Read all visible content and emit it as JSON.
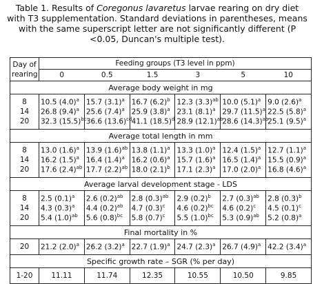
{
  "caption": {
    "before": "Table 1. Results of ",
    "species": "Coregonus lavaretus",
    "after": " larvae rearing on dry diet with T3 supplementation. Standard deviations in parentheses, means with the same superscript letter are not significantly different (P <0.05, Duncan's multiple test)."
  },
  "header": {
    "day_label": "Day of rearing",
    "group_label": "Feeding groups (T3 level in ppm)",
    "levels": [
      "0",
      "0.5",
      "1.5",
      "3",
      "5",
      "10"
    ]
  },
  "sections": [
    {
      "title": "Average body weight in mg",
      "rows": [
        {
          "day": "8",
          "cells": [
            {
              "text": "10.5 (4.0)",
              "sup": "a"
            },
            {
              "text": "15.7 (3.1)",
              "sup": "a"
            },
            {
              "text": "16.7 (6.2)",
              "sup": "b"
            },
            {
              "text": "12.3 (3.3)",
              "sup": "ab"
            },
            {
              "text": "10.0 (5.1)",
              "sup": "a"
            },
            {
              "text": "9.0 (2.6)",
              "sup": "a"
            }
          ]
        },
        {
          "day": "14",
          "cells": [
            {
              "text": "26.8 (9.4)",
              "sup": "a"
            },
            {
              "text": "25.6 (7.4)",
              "sup": "a"
            },
            {
              "text": "25.9 (3.8)",
              "sup": "a"
            },
            {
              "text": "23.1 (8.1)",
              "sup": "a"
            },
            {
              "text": "29.7 (11.5)",
              "sup": "a"
            },
            {
              "text": "22.5 (5.8)",
              "sup": "a"
            }
          ]
        },
        {
          "day": "20",
          "cells": [
            {
              "text": "32.3 (15.5)",
              "sup": "bc"
            },
            {
              "text": "36.6 (13.6)",
              "sup": "cd"
            },
            {
              "text": "41.1 (18.5)",
              "sup": "d"
            },
            {
              "text": "28.9 (12.1)",
              "sup": "ab"
            },
            {
              "text": "28.6 (14.3)",
              "sup": "ab"
            },
            {
              "text": "25.1 (9.5)",
              "sup": "a"
            }
          ]
        }
      ]
    },
    {
      "title": "Average total length in mm",
      "rows": [
        {
          "day": "8",
          "cells": [
            {
              "text": "13.0 (1.6)",
              "sup": "a"
            },
            {
              "text": "13.9 (1.6)",
              "sup": "ab"
            },
            {
              "text": "13.8 (1.1)",
              "sup": "a"
            },
            {
              "text": "13.3 (1.0)",
              "sup": "a"
            },
            {
              "text": "12.4 (1.5)",
              "sup": "a"
            },
            {
              "text": "12.7 (1.1)",
              "sup": "a"
            }
          ]
        },
        {
          "day": "14",
          "cells": [
            {
              "text": "16.2 (1.5)",
              "sup": "a"
            },
            {
              "text": "16.4 (1.4)",
              "sup": "a"
            },
            {
              "text": "16.2 (0.6)",
              "sup": "a"
            },
            {
              "text": "15.7 (1.6)",
              "sup": "a"
            },
            {
              "text": "16.5 (1.4)",
              "sup": "a"
            },
            {
              "text": "15.5 (0.9)",
              "sup": "a"
            }
          ]
        },
        {
          "day": "20",
          "cells": [
            {
              "text": "17.6 (2.4)",
              "sup": "ab"
            },
            {
              "text": "17.7 (2.2)",
              "sup": "ab"
            },
            {
              "text": "18.0 (2.1)",
              "sup": "b"
            },
            {
              "text": "17.1 (2.3)",
              "sup": "a"
            },
            {
              "text": "17.0 (2.0)",
              "sup": "a"
            },
            {
              "text": "16.8 (4.6)",
              "sup": "a"
            }
          ]
        }
      ]
    },
    {
      "title": "Average larval development stage - LDS",
      "rows": [
        {
          "day": "8",
          "cells": [
            {
              "text": "2.5 (0.1)",
              "sup": "a"
            },
            {
              "text": "2.6 (0.2)",
              "sup": "ab"
            },
            {
              "text": "2.8 (0.3)",
              "sup": "ab"
            },
            {
              "text": "2.9 (0.2)",
              "sup": "b"
            },
            {
              "text": "2.7 (0.3)",
              "sup": "ab"
            },
            {
              "text": "2.8 (0.3)",
              "sup": "b"
            }
          ]
        },
        {
          "day": "14",
          "cells": [
            {
              "text": "4.3 (0.3)",
              "sup": "a"
            },
            {
              "text": "4.4 (0.2)",
              "sup": "ab"
            },
            {
              "text": "4.7 (0.3)",
              "sup": "c"
            },
            {
              "text": "4.6 (0.2)",
              "sup": "bc"
            },
            {
              "text": "4.6 (0.2)",
              "sup": "c"
            },
            {
              "text": "4.5 (0.1)",
              "sup": "c"
            }
          ]
        },
        {
          "day": "20",
          "cells": [
            {
              "text": "5.4 (1.0)",
              "sup": "ab"
            },
            {
              "text": "5.6 (0.8)",
              "sup": "bc"
            },
            {
              "text": "5.8 (0.7)",
              "sup": "c"
            },
            {
              "text": "5.5 (1.0)",
              "sup": "bc"
            },
            {
              "text": "5.3 (0.9)",
              "sup": "ab"
            },
            {
              "text": "5.2 (0.8)",
              "sup": "a"
            }
          ]
        }
      ]
    },
    {
      "title": "Final mortality in %",
      "rows": [
        {
          "day": "20",
          "cells": [
            {
              "text": "21.2 (2.0)",
              "sup": "a"
            },
            {
              "text": "26.2 (3.2)",
              "sup": "a"
            },
            {
              "text": "22.7 (1.9)",
              "sup": "a"
            },
            {
              "text": "24.7 (2.3)",
              "sup": "a"
            },
            {
              "text": "26.7 (4.9)",
              "sup": "a"
            },
            {
              "text": "42.2 (3.4)",
              "sup": "a"
            }
          ]
        }
      ]
    },
    {
      "title": "Specific growth rate – SGR (% per day)",
      "rows": [
        {
          "day": "1-20",
          "cells": [
            {
              "text": "11.11"
            },
            {
              "text": "11.74"
            },
            {
              "text": "12.35"
            },
            {
              "text": "10.55"
            },
            {
              "text": "10.50"
            },
            {
              "text": "9.85"
            }
          ]
        }
      ]
    }
  ]
}
